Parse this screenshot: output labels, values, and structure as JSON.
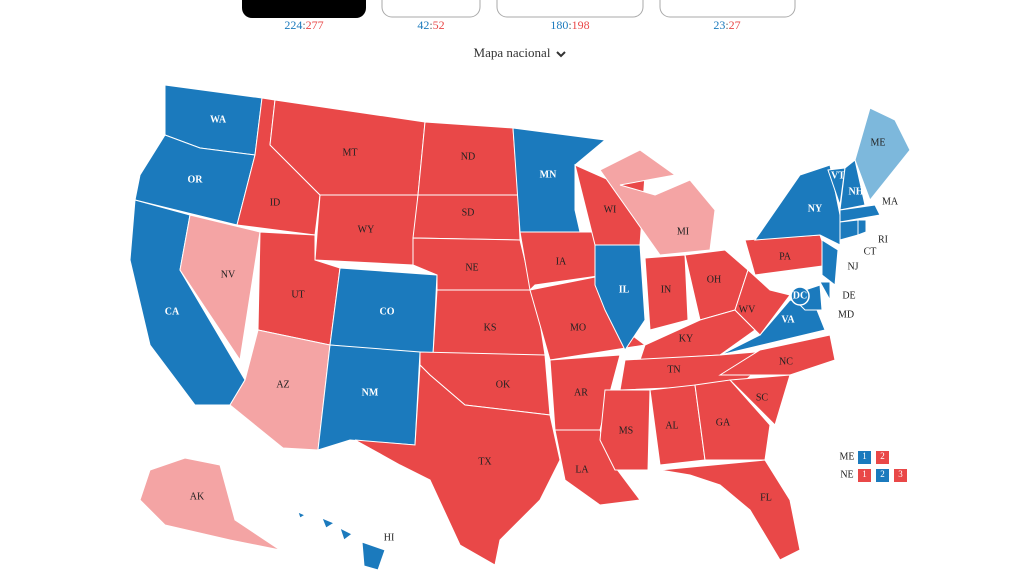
{
  "header": {
    "separator": ":",
    "scores": [
      {
        "left": "224",
        "right": "277"
      },
      {
        "left": "42",
        "right": "52"
      },
      {
        "left": "180",
        "right": "198"
      },
      {
        "left": "23",
        "right": "27"
      }
    ],
    "map_selector": "Mapa nacional"
  },
  "states": [
    {
      "label": "WA",
      "color": "#1b7abd"
    },
    {
      "label": "OR",
      "color": "#1b7abd"
    },
    {
      "label": "CA",
      "color": "#1b7abd"
    },
    {
      "label": "NV",
      "color": "#f4a4a4"
    },
    {
      "label": "ID",
      "color": "#e94848"
    },
    {
      "label": "MT",
      "color": "#e94848"
    },
    {
      "label": "WY",
      "color": "#e94848"
    },
    {
      "label": "UT",
      "color": "#e94848"
    },
    {
      "label": "AZ",
      "color": "#f4a4a4"
    },
    {
      "label": "CO",
      "color": "#1b7abd"
    },
    {
      "label": "NM",
      "color": "#1b7abd"
    },
    {
      "label": "ND",
      "color": "#e94848"
    },
    {
      "label": "SD",
      "color": "#e94848"
    },
    {
      "label": "NE",
      "color": "#e94848"
    },
    {
      "label": "KS",
      "color": "#e94848"
    },
    {
      "label": "OK",
      "color": "#e94848"
    },
    {
      "label": "TX",
      "color": "#e94848"
    },
    {
      "label": "MN",
      "color": "#1b7abd"
    },
    {
      "label": "IA",
      "color": "#e94848"
    },
    {
      "label": "MO",
      "color": "#e94848"
    },
    {
      "label": "AR",
      "color": "#e94848"
    },
    {
      "label": "LA",
      "color": "#e94848"
    },
    {
      "label": "WI",
      "color": "#e94848"
    },
    {
      "label": "IL",
      "color": "#1b7abd"
    },
    {
      "label": "MI",
      "color": "#f4a4a4"
    },
    {
      "label": "IN",
      "color": "#e94848"
    },
    {
      "label": "OH",
      "color": "#e94848"
    },
    {
      "label": "KY",
      "color": "#e94848"
    },
    {
      "label": "TN",
      "color": "#e94848"
    },
    {
      "label": "MS",
      "color": "#e94848"
    },
    {
      "label": "AL",
      "color": "#e94848"
    },
    {
      "label": "GA",
      "color": "#e94848"
    },
    {
      "label": "FL",
      "color": "#e94848"
    },
    {
      "label": "SC",
      "color": "#e94848"
    },
    {
      "label": "NC",
      "color": "#e94848"
    },
    {
      "label": "VA",
      "color": "#1b7abd"
    },
    {
      "label": "WV",
      "color": "#e94848"
    },
    {
      "label": "PA",
      "color": "#e94848"
    },
    {
      "label": "NY",
      "color": "#1b7abd"
    },
    {
      "label": "VT",
      "color": "#1b7abd"
    },
    {
      "label": "NH",
      "color": "#1b7abd"
    },
    {
      "label": "ME",
      "color": "#7db8dc"
    },
    {
      "label": "MA",
      "color": "#1b7abd"
    },
    {
      "label": "CT",
      "color": "#1b7abd"
    },
    {
      "label": "RI",
      "color": "#1b7abd"
    },
    {
      "label": "NJ",
      "color": "#1b7abd"
    },
    {
      "label": "DE",
      "color": "#1b7abd"
    },
    {
      "label": "MD",
      "color": "#1b7abd"
    },
    {
      "label": "DC",
      "color": "#1b7abd"
    },
    {
      "label": "AK",
      "color": "#f4a4a4"
    },
    {
      "label": "HI",
      "color": "#1b7abd"
    }
  ],
  "split_legend": [
    {
      "label": "ME",
      "boxes": [
        {
          "text": "1",
          "color": "#1b7abd"
        },
        {
          "text": "2",
          "color": "#e94848"
        }
      ]
    },
    {
      "label": "NE",
      "boxes": [
        {
          "text": "1",
          "color": "#e94848"
        },
        {
          "text": "2",
          "color": "#1b7abd"
        },
        {
          "text": "3",
          "color": "#e94848"
        }
      ]
    }
  ]
}
